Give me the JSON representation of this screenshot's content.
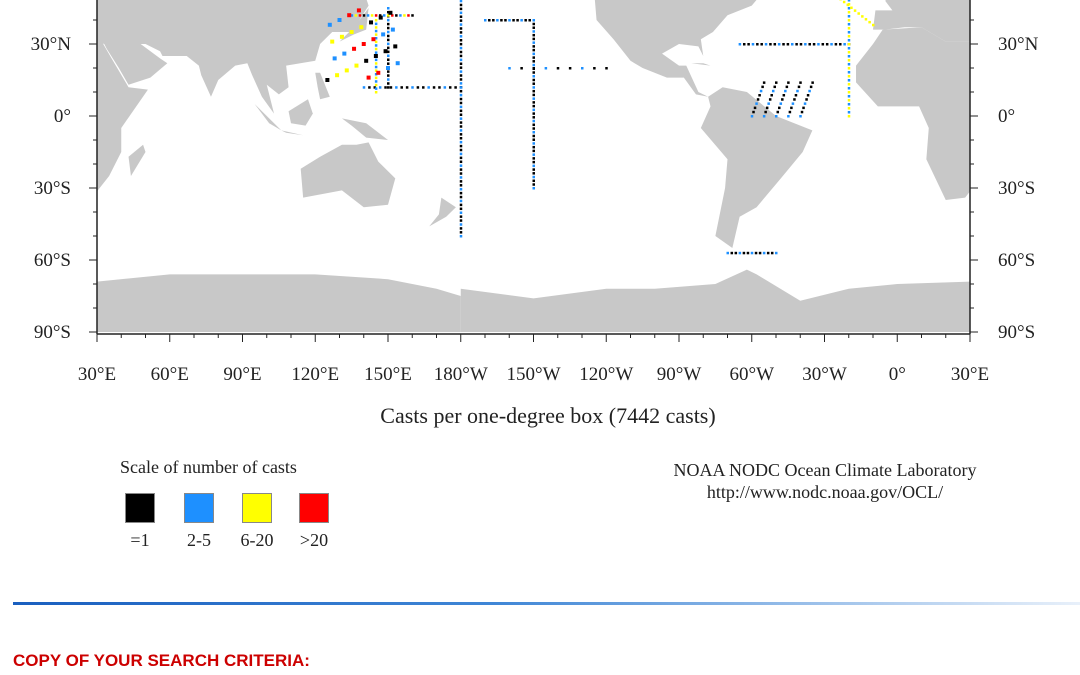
{
  "map": {
    "lat_labels": [
      "30°N",
      "0°",
      "30°S",
      "60°S",
      "90°S"
    ],
    "lat_values": [
      30,
      0,
      -30,
      -60,
      -90
    ],
    "lon_labels": [
      "30°E",
      "60°E",
      "90°E",
      "120°E",
      "150°E",
      "180°W",
      "150°W",
      "120°W",
      "90°W",
      "60°W",
      "30°W",
      "0°",
      "30°E"
    ],
    "land_color": "#c8c8c8",
    "ocean_color": "#ffffff"
  },
  "caption": "Casts per one-degree box (7442 casts)",
  "legend": {
    "title": "Scale of number of casts",
    "items": [
      {
        "label": "=1",
        "color": "#000000"
      },
      {
        "label": "2-5",
        "color": "#1e90ff"
      },
      {
        "label": "6-20",
        "color": "#ffff00"
      },
      {
        "label": ">20",
        "color": "#ff0000"
      }
    ]
  },
  "credit": {
    "line1": "NOAA NODC Ocean Climate Laboratory",
    "line2": "http://www.nodc.noaa.gov/OCL/"
  },
  "section_heading": "COPY OF YOUR SEARCH CRITERIA:"
}
